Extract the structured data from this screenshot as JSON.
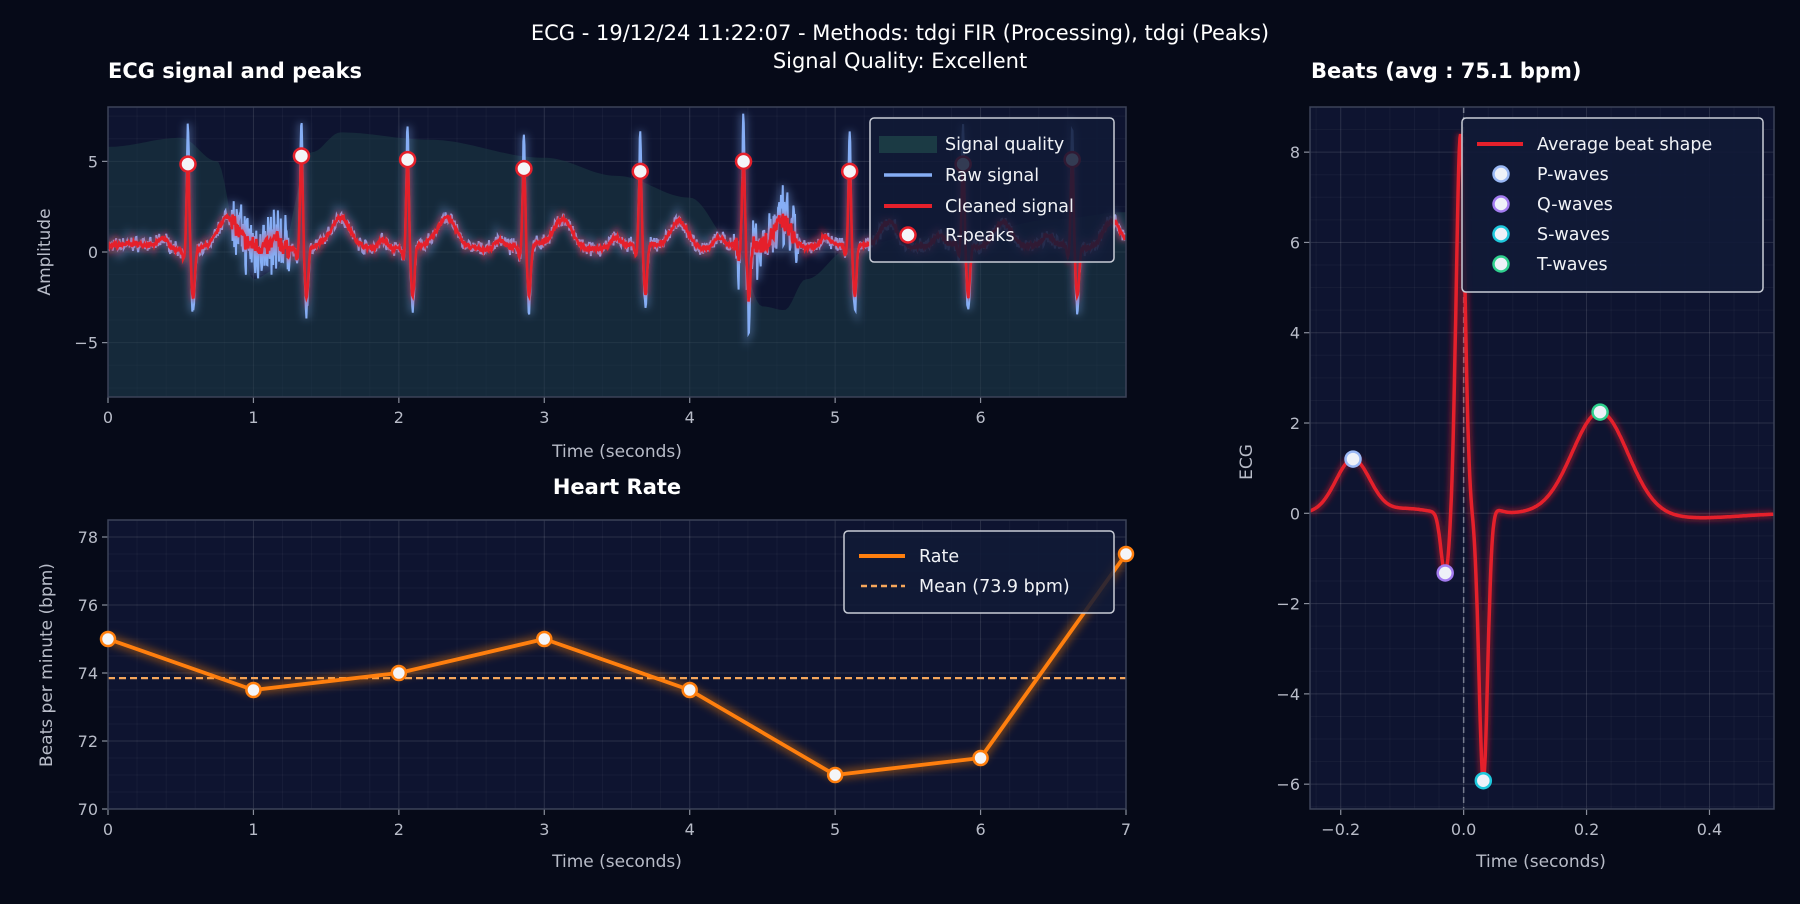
{
  "figure": {
    "title_line1": "ECG - 19/12/24 11:22:07 - Methods: tdgi FIR (Processing), tdgi (Peaks)",
    "title_line2": "Signal Quality: Excellent",
    "background": "#060a18",
    "axes_face": "#0e1430"
  },
  "chart_data": [
    {
      "id": "ecg",
      "type": "line",
      "title": "ECG signal and peaks",
      "xlabel": "Time (seconds)",
      "ylabel": "Amplitude",
      "xlim": [
        0,
        7.0
      ],
      "ylim": [
        -8,
        8
      ],
      "xticks": [
        0,
        1,
        2,
        3,
        4,
        5,
        6
      ],
      "yticks": [
        -5,
        0,
        5
      ],
      "grid": true,
      "legend_position": "top-right",
      "legend": [
        "Signal quality",
        "Raw signal",
        "Cleaned signal",
        "R-peaks"
      ],
      "colors": {
        "quality": "#1b3a44",
        "raw": "#86aef5",
        "cleaned": "#e5202b",
        "peak_face": "#f4f5f8",
        "peak_edge": "#e5202b"
      },
      "r_peaks": {
        "t": [
          0.55,
          1.33,
          2.06,
          2.86,
          3.66,
          4.37,
          5.1,
          5.88,
          6.63
        ],
        "amplitude": [
          4.85,
          5.3,
          5.1,
          4.6,
          4.45,
          5.0,
          4.45,
          4.85,
          5.1
        ]
      },
      "signal_quality": {
        "t": [
          0,
          0.5,
          0.75,
          0.9,
          1.0,
          1.15,
          1.4,
          1.6,
          2.2,
          3.0,
          3.5,
          4.0,
          4.3,
          4.5,
          4.65,
          4.8,
          5.1,
          5.5,
          6.0,
          6.5,
          7.0
        ],
        "value": [
          5.8,
          6.3,
          5.0,
          0.5,
          -1.5,
          -1.0,
          5.5,
          6.6,
          6.2,
          5.2,
          4.2,
          3.0,
          0.5,
          -3.0,
          -3.2,
          -1.5,
          0.2,
          0.8,
          1.2,
          1.8,
          2.2
        ]
      }
    },
    {
      "id": "hr",
      "type": "line",
      "title": "Heart Rate",
      "xlabel": "Time (seconds)",
      "ylabel": "Beats per minute (bpm)",
      "xlim": [
        0,
        7
      ],
      "ylim": [
        70,
        78.5
      ],
      "xticks": [
        0,
        1,
        2,
        3,
        4,
        5,
        6,
        7
      ],
      "yticks": [
        70,
        72,
        74,
        76,
        78
      ],
      "grid": true,
      "legend_position": "top-right",
      "series": [
        {
          "name": "Rate",
          "x": [
            0,
            1,
            2,
            3,
            4,
            5,
            6,
            7
          ],
          "y": [
            75.0,
            73.5,
            74.0,
            75.0,
            73.5,
            71.0,
            71.5,
            77.5
          ],
          "color": "#ff7f0e"
        }
      ],
      "mean": {
        "name": "Mean (73.9 bpm)",
        "value": 73.85,
        "color": "#f5a65b"
      }
    },
    {
      "id": "beats",
      "type": "line",
      "title": "Beats (avg : 75.1 bpm)",
      "xlabel": "Time (seconds)",
      "ylabel": "ECG",
      "xlim": [
        -0.25,
        0.505
      ],
      "ylim": [
        -6.55,
        9.0
      ],
      "xticks": [
        -0.2,
        0.0,
        0.2,
        0.4
      ],
      "xtick_labels": [
        "−0.2",
        "0.0",
        "0.2",
        "0.4"
      ],
      "yticks": [
        -6,
        -4,
        -2,
        0,
        2,
        4,
        6,
        8
      ],
      "grid": true,
      "legend_position": "top-right",
      "legend": [
        "Average beat shape",
        "P-waves",
        "Q-waves",
        "S-waves",
        "T-waves"
      ],
      "average_beat_color": "#e5202b",
      "waves": [
        {
          "name": "P-waves",
          "x": -0.18,
          "y": 1.2,
          "color": "#9ab8f5"
        },
        {
          "name": "Q-waves",
          "x": -0.03,
          "y": -1.35,
          "color": "#a37cf0"
        },
        {
          "name": "S-waves",
          "x": 0.032,
          "y": -5.95,
          "color": "#1ec8dc"
        },
        {
          "name": "T-waves",
          "x": 0.222,
          "y": 2.25,
          "color": "#2fd08e"
        }
      ],
      "r_peak": {
        "x": -0.005,
        "y": 8.4
      },
      "zero_line": 0.0
    }
  ]
}
